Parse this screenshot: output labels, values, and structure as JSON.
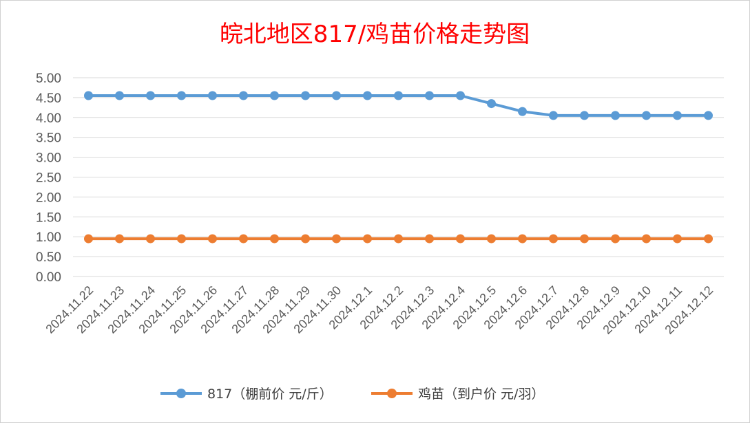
{
  "chart_data": {
    "type": "line",
    "title": "皖北地区817/鸡苗价格走势图",
    "colors": {
      "title": "#ff0000"
    },
    "categories": [
      "2024.11.22",
      "2024.11.23",
      "2024.11.24",
      "2024.11.25",
      "2024.11.26",
      "2024.11.27",
      "2024.11.28",
      "2024.11.29",
      "2024.11.30",
      "2024.12.1",
      "2024.12.2",
      "2024.12.3",
      "2024.12.4",
      "2024.12.5",
      "2024.12.6",
      "2024.12.7",
      "2024.12.8",
      "2024.12.9",
      "2024.12.10",
      "2024.12.11",
      "2024.12.12"
    ],
    "y_ticks": [
      "0.00",
      "0.50",
      "1.00",
      "1.50",
      "2.00",
      "2.50",
      "3.00",
      "3.50",
      "4.00",
      "4.50",
      "5.00"
    ],
    "ylim": [
      0,
      5
    ],
    "grid": true,
    "legend_position": "bottom",
    "series": [
      {
        "name": "817（棚前价 元/斤）",
        "color": "#5b9bd5",
        "values": [
          4.55,
          4.55,
          4.55,
          4.55,
          4.55,
          4.55,
          4.55,
          4.55,
          4.55,
          4.55,
          4.55,
          4.55,
          4.55,
          4.35,
          4.15,
          4.05,
          4.05,
          4.05,
          4.05,
          4.05,
          4.05
        ]
      },
      {
        "name": "鸡苗（到户价 元/羽）",
        "color": "#ed7d31",
        "values": [
          0.95,
          0.95,
          0.95,
          0.95,
          0.95,
          0.95,
          0.95,
          0.95,
          0.95,
          0.95,
          0.95,
          0.95,
          0.95,
          0.95,
          0.95,
          0.95,
          0.95,
          0.95,
          0.95,
          0.95,
          0.95
        ]
      }
    ]
  }
}
